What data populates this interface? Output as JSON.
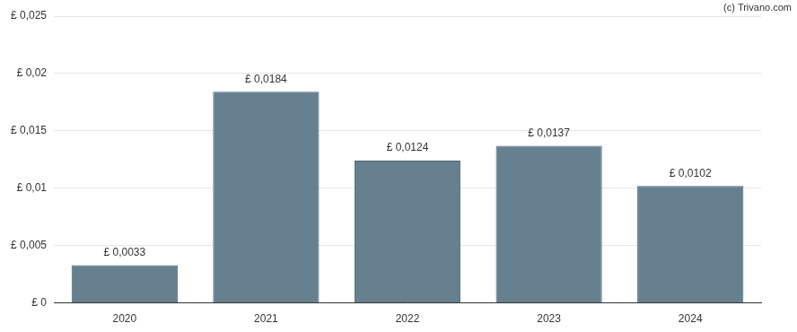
{
  "chart_data": {
    "type": "bar",
    "categories": [
      "2020",
      "2021",
      "2022",
      "2023",
      "2024"
    ],
    "values": [
      0.0033,
      0.0184,
      0.0124,
      0.0137,
      0.0102
    ],
    "value_labels": [
      "£ 0,0033",
      "£ 0,0184",
      "£ 0,0124",
      "£ 0,0137",
      "£ 0,0102"
    ],
    "color": "#66808f",
    "ylim": [
      0,
      0.025
    ],
    "yticks": [
      {
        "value": 0,
        "label": "£ 0"
      },
      {
        "value": 0.005,
        "label": "£ 0,005"
      },
      {
        "value": 0.01,
        "label": "£ 0,01"
      },
      {
        "value": 0.015,
        "label": "£ 0,015"
      },
      {
        "value": 0.02,
        "label": "£ 0,02"
      },
      {
        "value": 0.025,
        "label": "£ 0,025"
      }
    ],
    "grid": true,
    "data_labels": true,
    "annotation": "(c) Trivano.com"
  }
}
